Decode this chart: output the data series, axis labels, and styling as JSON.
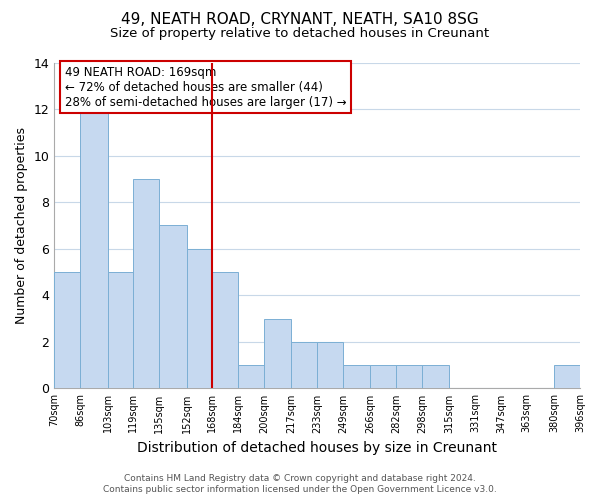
{
  "title": "49, NEATH ROAD, CRYNANT, NEATH, SA10 8SG",
  "subtitle": "Size of property relative to detached houses in Creunant",
  "xlabel": "Distribution of detached houses by size in Creunant",
  "ylabel": "Number of detached properties",
  "bar_edges": [
    70,
    86,
    103,
    119,
    135,
    152,
    168,
    184,
    200,
    217,
    233,
    249,
    266,
    282,
    298,
    315,
    331,
    347,
    363,
    380,
    396
  ],
  "bar_heights": [
    5,
    12,
    5,
    9,
    7,
    6,
    5,
    1,
    3,
    2,
    2,
    1,
    1,
    1,
    1,
    0,
    0,
    0,
    0,
    1
  ],
  "bar_labels": [
    "70sqm",
    "86sqm",
    "103sqm",
    "119sqm",
    "135sqm",
    "152sqm",
    "168sqm",
    "184sqm",
    "200sqm",
    "217sqm",
    "233sqm",
    "249sqm",
    "266sqm",
    "282sqm",
    "298sqm",
    "315sqm",
    "331sqm",
    "347sqm",
    "363sqm",
    "380sqm",
    "396sqm"
  ],
  "property_line_x": 168,
  "property_line_color": "#cc0000",
  "bar_color": "#c6d9f0",
  "bar_edge_color": "#7bafd4",
  "ylim": [
    0,
    14
  ],
  "yticks": [
    0,
    2,
    4,
    6,
    8,
    10,
    12,
    14
  ],
  "annotation_title": "49 NEATH ROAD: 169sqm",
  "annotation_line1": "← 72% of detached houses are smaller (44)",
  "annotation_line2": "28% of semi-detached houses are larger (17) →",
  "annotation_box_color": "#ffffff",
  "annotation_box_edge": "#cc0000",
  "footer_line1": "Contains HM Land Registry data © Crown copyright and database right 2024.",
  "footer_line2": "Contains public sector information licensed under the Open Government Licence v3.0.",
  "background_color": "#ffffff",
  "grid_color": "#c8d8e8"
}
